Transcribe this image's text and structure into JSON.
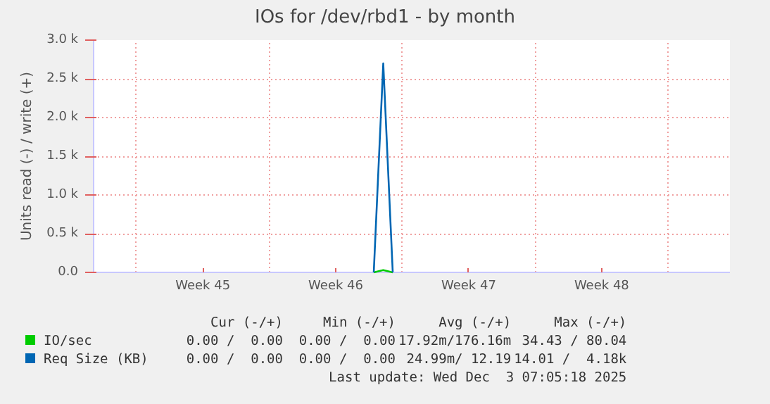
{
  "chart_data": {
    "type": "line",
    "title": "IOs for /dev/rbd1 - by month",
    "ylabel": "Units read (-) / write (+)",
    "categories": [
      null,
      null,
      null,
      null,
      null,
      null,
      null,
      null,
      null,
      null,
      null,
      "Week 45",
      null,
      null,
      null,
      null,
      null,
      null,
      null,
      null,
      null,
      null,
      null,
      null,
      null,
      "Week 46",
      null,
      null,
      null,
      null,
      null,
      null,
      null,
      null,
      null,
      null,
      null,
      null,
      null,
      "Week 47",
      null,
      null,
      null,
      null,
      null,
      null,
      null,
      null,
      null,
      null,
      null,
      null,
      null,
      "Week 48",
      null,
      null,
      null,
      null,
      null,
      null,
      null,
      null,
      null,
      null,
      null,
      null,
      null
    ],
    "series": [
      {
        "name": "IO/sec",
        "color": "#00cc00",
        "values": [
          null,
          null,
          null,
          null,
          null,
          null,
          null,
          null,
          null,
          null,
          null,
          null,
          null,
          null,
          null,
          null,
          null,
          null,
          null,
          null,
          null,
          null,
          null,
          null,
          null,
          null,
          null,
          null,
          null,
          0,
          30,
          0,
          null,
          null,
          null,
          null,
          null,
          null,
          null,
          null,
          null,
          null,
          null,
          null,
          null,
          null,
          null,
          null,
          null,
          null,
          null,
          null,
          null,
          null,
          null,
          null,
          null,
          null,
          null,
          null,
          null,
          null,
          null,
          null,
          null,
          null,
          null
        ]
      },
      {
        "name": "Req Size (KB)",
        "color": "#0066b3",
        "values": [
          null,
          null,
          null,
          null,
          null,
          null,
          null,
          null,
          null,
          null,
          null,
          null,
          null,
          null,
          null,
          null,
          null,
          null,
          null,
          null,
          null,
          null,
          null,
          null,
          null,
          null,
          null,
          null,
          null,
          0,
          2700,
          0,
          null,
          null,
          null,
          null,
          null,
          null,
          null,
          null,
          null,
          null,
          null,
          null,
          null,
          null,
          null,
          null,
          null,
          null,
          null,
          null,
          null,
          null,
          null,
          null,
          null,
          null,
          null,
          null,
          null,
          null,
          null,
          null,
          null,
          null,
          null
        ]
      }
    ],
    "ylim": [
      0,
      3000
    ],
    "yticks": [
      {
        "value": 0,
        "label": "0.0"
      },
      {
        "value": 500,
        "label": "0.5 k"
      },
      {
        "value": 1000,
        "label": "1.0 k"
      },
      {
        "value": 1500,
        "label": "1.5 k"
      },
      {
        "value": 2000,
        "label": "2.0 k"
      },
      {
        "value": 2500,
        "label": "2.5 k"
      },
      {
        "value": 3000,
        "label": "3.0 k"
      }
    ],
    "grid": true,
    "legend": "bottom",
    "marker": "none",
    "line_style": "solid",
    "annotations": [
      "Cur (-/+)",
      "Min (-/+)",
      "Avg (-/+)",
      "Max (-/+)",
      "0.00 /  0.00",
      "0.00 /  0.00",
      "17.92m/176.16m",
      "34.43 / 80.04",
      "0.00 /  0.00",
      "0.00 /  0.00",
      "24.99m/ 12.19",
      "14.01 /  4.18k",
      "Last update: Wed Dec  3 07:05:18 2025"
    ]
  }
}
